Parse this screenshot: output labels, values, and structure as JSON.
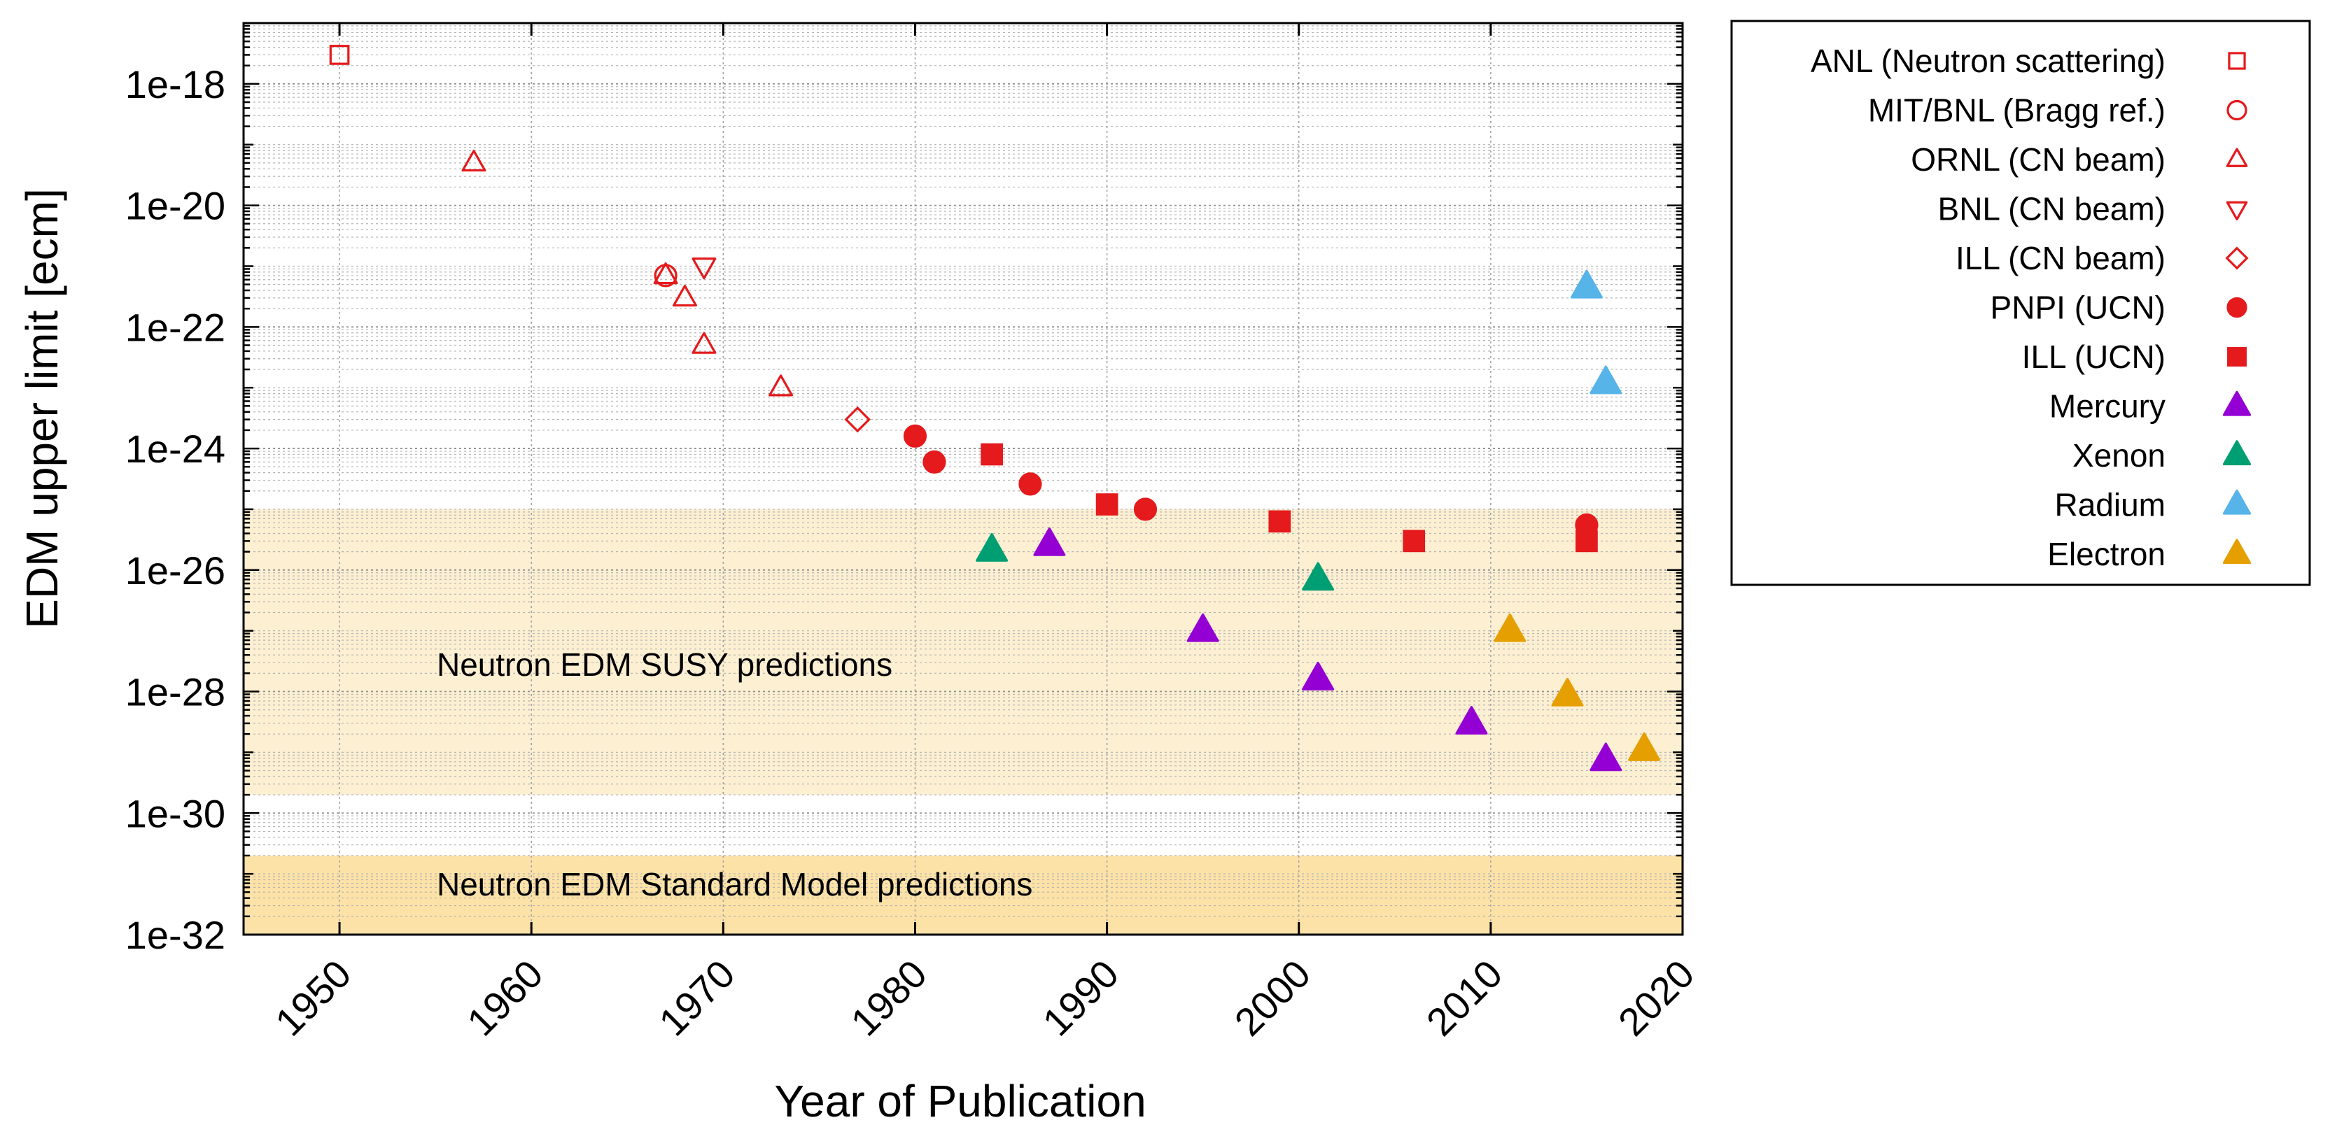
{
  "chart_data": {
    "type": "scatter",
    "title": "",
    "xlabel": "Year of Publication",
    "ylabel": "EDM upper limit [ecm]",
    "xlim": [
      1945,
      2020
    ],
    "ylim_log10": [
      -32,
      -17
    ],
    "y_scale": "log",
    "x_ticks": [
      "1950",
      "1960",
      "1970",
      "1980",
      "1990",
      "2000",
      "2010",
      "2020"
    ],
    "y_ticks": [
      "1e-18",
      "1e-20",
      "1e-22",
      "1e-24",
      "1e-26",
      "1e-28",
      "1e-30",
      "1e-32"
    ],
    "grid": true,
    "legend_position": "outside-right",
    "bands": [
      {
        "label": "Neutron EDM SUSY predictions",
        "y_from": 1e-25,
        "y_to": 2e-30,
        "color": "#fdefd2"
      },
      {
        "label": "Neutron EDM Standard Model predictions",
        "y_from": 2e-31,
        "y_to": 1e-32,
        "color": "#fde2a8"
      }
    ],
    "series": [
      {
        "name": "ANL (Neutron scattering)",
        "marker": "square-open",
        "color": "#e41a1c",
        "points": [
          [
            1950,
            3e-18
          ]
        ]
      },
      {
        "name": "MIT/BNL (Bragg ref.)",
        "marker": "circle-open",
        "color": "#e41a1c",
        "points": [
          [
            1967,
            7e-22
          ]
        ]
      },
      {
        "name": "ORNL (CN beam)",
        "marker": "triangle-up-open",
        "color": "#e41a1c",
        "points": [
          [
            1957,
            5e-20
          ],
          [
            1967,
            7e-22
          ],
          [
            1968,
            3e-22
          ],
          [
            1969,
            5e-23
          ],
          [
            1973,
            1e-23
          ]
        ]
      },
      {
        "name": "BNL (CN beam)",
        "marker": "triangle-down-open",
        "color": "#e41a1c",
        "points": [
          [
            1969,
            1e-21
          ]
        ]
      },
      {
        "name": "ILL (CN beam)",
        "marker": "diamond-open",
        "color": "#e41a1c",
        "points": [
          [
            1977,
            3e-24
          ]
        ]
      },
      {
        "name": "PNPI (UCN)",
        "marker": "circle-filled",
        "color": "#e41a1c",
        "points": [
          [
            1980,
            1.6e-24
          ],
          [
            1981,
            6e-25
          ],
          [
            1986,
            2.6e-25
          ],
          [
            1992,
            1e-25
          ],
          [
            2015,
            5.5e-26
          ]
        ]
      },
      {
        "name": "ILL (UCN)",
        "marker": "square-filled",
        "color": "#e41a1c",
        "points": [
          [
            1984,
            8e-25
          ],
          [
            1990,
            1.2e-25
          ],
          [
            1999,
            6.3e-26
          ],
          [
            2006,
            3e-26
          ],
          [
            2015,
            3e-26
          ]
        ]
      },
      {
        "name": "Mercury",
        "marker": "triangle-up-filled",
        "color": "#9400d3",
        "points": [
          [
            1987,
            2.6e-26
          ],
          [
            1995,
            1e-27
          ],
          [
            2001,
            1.6e-28
          ],
          [
            2009,
            3e-29
          ],
          [
            2016,
            7.5e-30
          ]
        ]
      },
      {
        "name": "Xenon",
        "marker": "triangle-up-filled",
        "color": "#009e73",
        "points": [
          [
            1984,
            2.1e-26
          ],
          [
            2001,
            7e-27
          ]
        ]
      },
      {
        "name": "Radium",
        "marker": "triangle-up-filled",
        "color": "#56b4e9",
        "points": [
          [
            2015,
            4.5e-22
          ],
          [
            2016,
            1.2e-23
          ]
        ]
      },
      {
        "name": "Electron",
        "marker": "triangle-up-filled",
        "color": "#e69f00",
        "points": [
          [
            2011,
            1e-27
          ],
          [
            2014,
            8.7e-29
          ],
          [
            2018,
            1.1e-29
          ]
        ]
      }
    ]
  }
}
